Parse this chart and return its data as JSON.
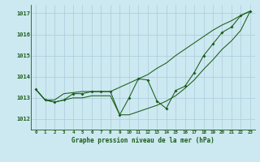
{
  "title": "Graphe pression niveau de la mer (hPa)",
  "bg_color": "#cce8f0",
  "grid_color": "#aaccdd",
  "line_color": "#1a5c1a",
  "x_ticks": [
    0,
    1,
    2,
    3,
    4,
    5,
    6,
    7,
    8,
    9,
    10,
    11,
    12,
    13,
    14,
    15,
    16,
    17,
    18,
    19,
    20,
    21,
    22,
    23
  ],
  "ylim": [
    1011.5,
    1017.4
  ],
  "yticks": [
    1012,
    1013,
    1014,
    1015,
    1016,
    1017
  ],
  "main_series": [
    1013.4,
    1012.9,
    1012.8,
    1012.9,
    1013.2,
    1013.2,
    1013.3,
    1013.3,
    1013.3,
    1012.2,
    1013.0,
    1013.9,
    1013.85,
    1012.85,
    1012.5,
    1013.35,
    1013.55,
    1014.2,
    1015.0,
    1015.55,
    1016.1,
    1016.35,
    1016.9,
    1017.1
  ],
  "upper_line": [
    1013.4,
    1012.9,
    1012.9,
    1013.2,
    1013.25,
    1013.3,
    1013.3,
    1013.3,
    1013.3,
    1013.5,
    1013.7,
    1013.9,
    1014.1,
    1014.4,
    1014.65,
    1015.0,
    1015.3,
    1015.6,
    1015.9,
    1016.2,
    1016.45,
    1016.65,
    1016.9,
    1017.1
  ],
  "lower_line": [
    1013.4,
    1012.9,
    1012.8,
    1012.9,
    1013.0,
    1013.0,
    1013.1,
    1013.1,
    1013.1,
    1012.2,
    1012.2,
    1012.35,
    1012.5,
    1012.65,
    1012.85,
    1013.1,
    1013.45,
    1013.85,
    1014.35,
    1014.8,
    1015.3,
    1015.7,
    1016.2,
    1017.1
  ]
}
